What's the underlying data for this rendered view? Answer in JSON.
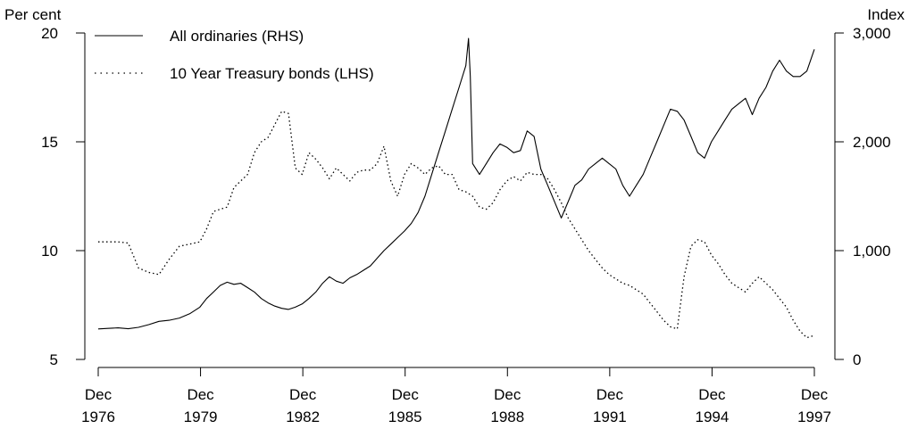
{
  "chart_data": {
    "type": "line",
    "left_axis": {
      "unit": "Per cent",
      "ticks": [
        "5",
        "10",
        "15",
        "20"
      ],
      "range": [
        5,
        20
      ]
    },
    "right_axis": {
      "unit": "Index",
      "ticks": [
        "0",
        "1,000",
        "2,000",
        "3,000"
      ],
      "range": [
        0,
        3000
      ]
    },
    "x_axis": {
      "range": [
        1976.92,
        1997.92
      ],
      "ticks": [
        {
          "x": 1976.92,
          "line1": "Dec",
          "line2": "1976"
        },
        {
          "x": 1979.92,
          "line1": "Dec",
          "line2": "1979"
        },
        {
          "x": 1982.92,
          "line1": "Dec",
          "line2": "1982"
        },
        {
          "x": 1985.92,
          "line1": "Dec",
          "line2": "1985"
        },
        {
          "x": 1988.92,
          "line1": "Dec",
          "line2": "1988"
        },
        {
          "x": 1991.92,
          "line1": "Dec",
          "line2": "1991"
        },
        {
          "x": 1994.92,
          "line1": "Dec",
          "line2": "1994"
        },
        {
          "x": 1997.92,
          "line1": "Dec",
          "line2": "1997"
        }
      ]
    },
    "legend": {
      "placement": "top-left"
    },
    "series": [
      {
        "name": "All ordinaries (RHS)",
        "axis": "right",
        "style": "solid",
        "x": [
          1976.92,
          1977.2,
          1977.5,
          1977.8,
          1978.1,
          1978.4,
          1978.7,
          1979.0,
          1979.3,
          1979.6,
          1979.9,
          1980.1,
          1980.3,
          1980.5,
          1980.7,
          1980.9,
          1981.1,
          1981.3,
          1981.5,
          1981.7,
          1981.9,
          1982.1,
          1982.3,
          1982.5,
          1982.7,
          1982.9,
          1983.1,
          1983.3,
          1983.5,
          1983.7,
          1983.9,
          1984.1,
          1984.3,
          1984.5,
          1984.7,
          1984.9,
          1985.1,
          1985.3,
          1985.5,
          1985.7,
          1985.9,
          1986.1,
          1986.3,
          1986.5,
          1986.7,
          1986.9,
          1987.1,
          1987.3,
          1987.5,
          1987.7,
          1987.78,
          1987.83,
          1987.9,
          1988.1,
          1988.3,
          1988.5,
          1988.7,
          1988.9,
          1989.1,
          1989.3,
          1989.5,
          1989.7,
          1989.9,
          1990.1,
          1990.3,
          1990.5,
          1990.7,
          1990.9,
          1991.1,
          1991.3,
          1991.5,
          1991.7,
          1991.9,
          1992.1,
          1992.3,
          1992.5,
          1992.7,
          1992.9,
          1993.1,
          1993.3,
          1993.5,
          1993.7,
          1993.9,
          1994.1,
          1994.3,
          1994.5,
          1994.7,
          1994.9,
          1995.1,
          1995.3,
          1995.5,
          1995.7,
          1995.9,
          1996.1,
          1996.3,
          1996.5,
          1996.7,
          1996.9,
          1997.1,
          1997.3,
          1997.5,
          1997.7,
          1997.92
        ],
        "values": [
          280,
          285,
          290,
          282,
          295,
          320,
          350,
          360,
          380,
          420,
          480,
          560,
          620,
          680,
          710,
          690,
          700,
          660,
          620,
          560,
          520,
          490,
          470,
          460,
          480,
          510,
          560,
          620,
          700,
          760,
          720,
          700,
          750,
          780,
          820,
          860,
          930,
          1000,
          1060,
          1120,
          1180,
          1250,
          1350,
          1500,
          1700,
          1900,
          2100,
          2300,
          2500,
          2700,
          2950,
          2600,
          1800,
          1700,
          1800,
          1900,
          1980,
          1950,
          1900,
          1920,
          2100,
          2050,
          1750,
          1600,
          1450,
          1300,
          1450,
          1600,
          1650,
          1750,
          1800,
          1850,
          1800,
          1750,
          1600,
          1500,
          1600,
          1700,
          1850,
          2000,
          2150,
          2300,
          2280,
          2200,
          2050,
          1900,
          1850,
          2000,
          2100,
          2200,
          2300,
          2350,
          2400,
          2250,
          2400,
          2500,
          2650,
          2750,
          2650,
          2600,
          2600,
          2650,
          2850
        ]
      },
      {
        "name": "10 Year Treasury bonds (LHS)",
        "axis": "left",
        "style": "dotted",
        "x": [
          1976.92,
          1977.2,
          1977.5,
          1977.8,
          1978.1,
          1978.4,
          1978.7,
          1979.0,
          1979.3,
          1979.6,
          1979.9,
          1980.1,
          1980.3,
          1980.5,
          1980.7,
          1980.9,
          1981.1,
          1981.3,
          1981.5,
          1981.7,
          1981.9,
          1982.1,
          1982.3,
          1982.5,
          1982.7,
          1982.9,
          1983.1,
          1983.3,
          1983.5,
          1983.7,
          1983.9,
          1984.1,
          1984.3,
          1984.5,
          1984.7,
          1984.9,
          1985.1,
          1985.3,
          1985.5,
          1985.7,
          1985.9,
          1986.1,
          1986.3,
          1986.5,
          1986.7,
          1986.9,
          1987.1,
          1987.3,
          1987.5,
          1987.7,
          1987.9,
          1988.1,
          1988.3,
          1988.5,
          1988.7,
          1988.9,
          1989.1,
          1989.3,
          1989.5,
          1989.7,
          1989.9,
          1990.1,
          1990.3,
          1990.5,
          1990.7,
          1990.9,
          1991.1,
          1991.3,
          1991.5,
          1991.7,
          1991.9,
          1992.1,
          1992.3,
          1992.5,
          1992.7,
          1992.9,
          1993.1,
          1993.3,
          1993.5,
          1993.7,
          1993.9,
          1994.1,
          1994.3,
          1994.5,
          1994.7,
          1994.9,
          1995.1,
          1995.3,
          1995.5,
          1995.7,
          1995.9,
          1996.1,
          1996.3,
          1996.5,
          1996.7,
          1996.9,
          1997.1,
          1997.3,
          1997.5,
          1997.7,
          1997.92
        ],
        "values": [
          10.4,
          10.4,
          10.4,
          10.35,
          9.2,
          9.0,
          8.9,
          9.6,
          10.2,
          10.3,
          10.4,
          11.0,
          11.8,
          11.9,
          12.0,
          12.9,
          13.2,
          13.5,
          14.5,
          15.0,
          15.2,
          15.8,
          16.4,
          16.3,
          13.8,
          13.5,
          14.5,
          14.2,
          13.8,
          13.3,
          13.8,
          13.5,
          13.2,
          13.6,
          13.7,
          13.7,
          14.0,
          14.8,
          13.2,
          12.5,
          13.5,
          14.0,
          13.8,
          13.5,
          13.8,
          13.9,
          13.5,
          13.5,
          12.8,
          12.7,
          12.5,
          12.0,
          11.9,
          12.2,
          12.8,
          13.2,
          13.4,
          13.2,
          13.6,
          13.5,
          13.5,
          13.3,
          12.8,
          12.2,
          11.5,
          11.0,
          10.5,
          10.0,
          9.6,
          9.2,
          8.9,
          8.7,
          8.5,
          8.4,
          8.2,
          8.0,
          7.6,
          7.2,
          6.8,
          6.5,
          6.4,
          8.8,
          10.2,
          10.5,
          10.4,
          9.8,
          9.4,
          8.9,
          8.5,
          8.3,
          8.1,
          8.5,
          8.8,
          8.5,
          8.2,
          7.8,
          7.4,
          6.8,
          6.3,
          6.0,
          6.1
        ]
      }
    ]
  }
}
